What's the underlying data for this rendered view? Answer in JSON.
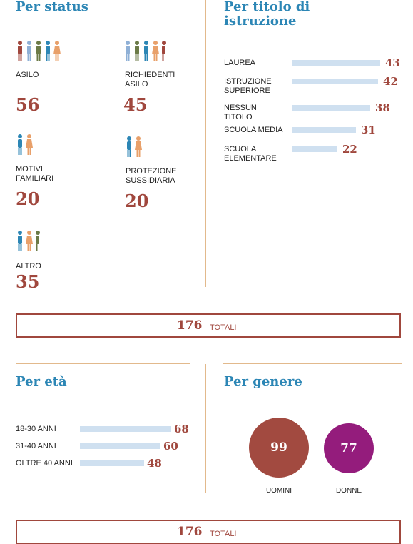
{
  "status": {
    "title": "Per status",
    "items": [
      {
        "label": "ASILO",
        "value": "56"
      },
      {
        "label": "RICHIEDENTI ASILO",
        "value": "45"
      },
      {
        "label": "MOTIVI FAMILIARI",
        "value": "20"
      },
      {
        "label": "PROTEZIONE SUSSIDIARIA",
        "value": "20"
      },
      {
        "label": "ALTRO",
        "value": "35"
      }
    ]
  },
  "istruzione": {
    "title": "Per titolo di istruzione",
    "max": 43,
    "items": [
      {
        "label": "LAUREA",
        "value": 43
      },
      {
        "label": "ISTRUZIONE SUPERIORE",
        "value": 42
      },
      {
        "label": "NESSUN TITOLO",
        "value": 38
      },
      {
        "label": "SCUOLA MEDIA",
        "value": 31
      },
      {
        "label": "SCUOLA ELEMENTARE",
        "value": 22
      }
    ]
  },
  "total1": {
    "value": "176",
    "label": "TOTALI"
  },
  "eta": {
    "title": "Per età",
    "max": 68,
    "items": [
      {
        "label": "18-30 ANNI",
        "value": 68
      },
      {
        "label": "31-40 ANNI",
        "value": 60
      },
      {
        "label": "OLTRE 40 ANNI",
        "value": 48
      }
    ]
  },
  "genere": {
    "title": "Per genere",
    "items": [
      {
        "label": "UOMINI",
        "value": "99",
        "color": "#a24a40"
      },
      {
        "label": "DONNE",
        "value": "77",
        "color": "#941c7c"
      }
    ]
  },
  "total2": {
    "value": "176",
    "label": "TOTALI"
  },
  "colors": {
    "accent_blue": "#2c86b5",
    "accent_red": "#a0473d",
    "bar": "#cfe0f0",
    "divider": "#e2b98c",
    "person_colors": [
      "#a0473d",
      "#8fb0d6",
      "#6b7a47",
      "#2c86b5",
      "#e8a06a"
    ]
  },
  "icons": [
    "people-icon"
  ]
}
